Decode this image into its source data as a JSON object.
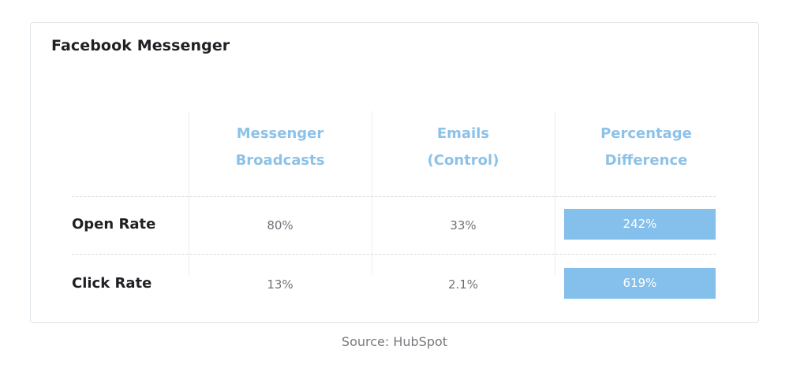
{
  "title": "Facebook Messenger",
  "source": "Source: HubSpot",
  "chart_data": {
    "type": "table",
    "title": "Facebook Messenger",
    "columns": [
      {
        "lines": [
          "Messenger",
          "Broadcasts"
        ]
      },
      {
        "lines": [
          "Emails",
          "(Control)"
        ]
      },
      {
        "lines": [
          "Percentage",
          "Difference"
        ]
      }
    ],
    "rows": [
      {
        "label": "Open Rate",
        "messenger": "80%",
        "emails": "33%",
        "difference": "242%"
      },
      {
        "label": "Click Rate",
        "messenger": "13%",
        "emails": "2.1%",
        "difference": "619%"
      }
    ],
    "accent_color": "#85bfeb",
    "header_color": "#8dc2e8"
  }
}
